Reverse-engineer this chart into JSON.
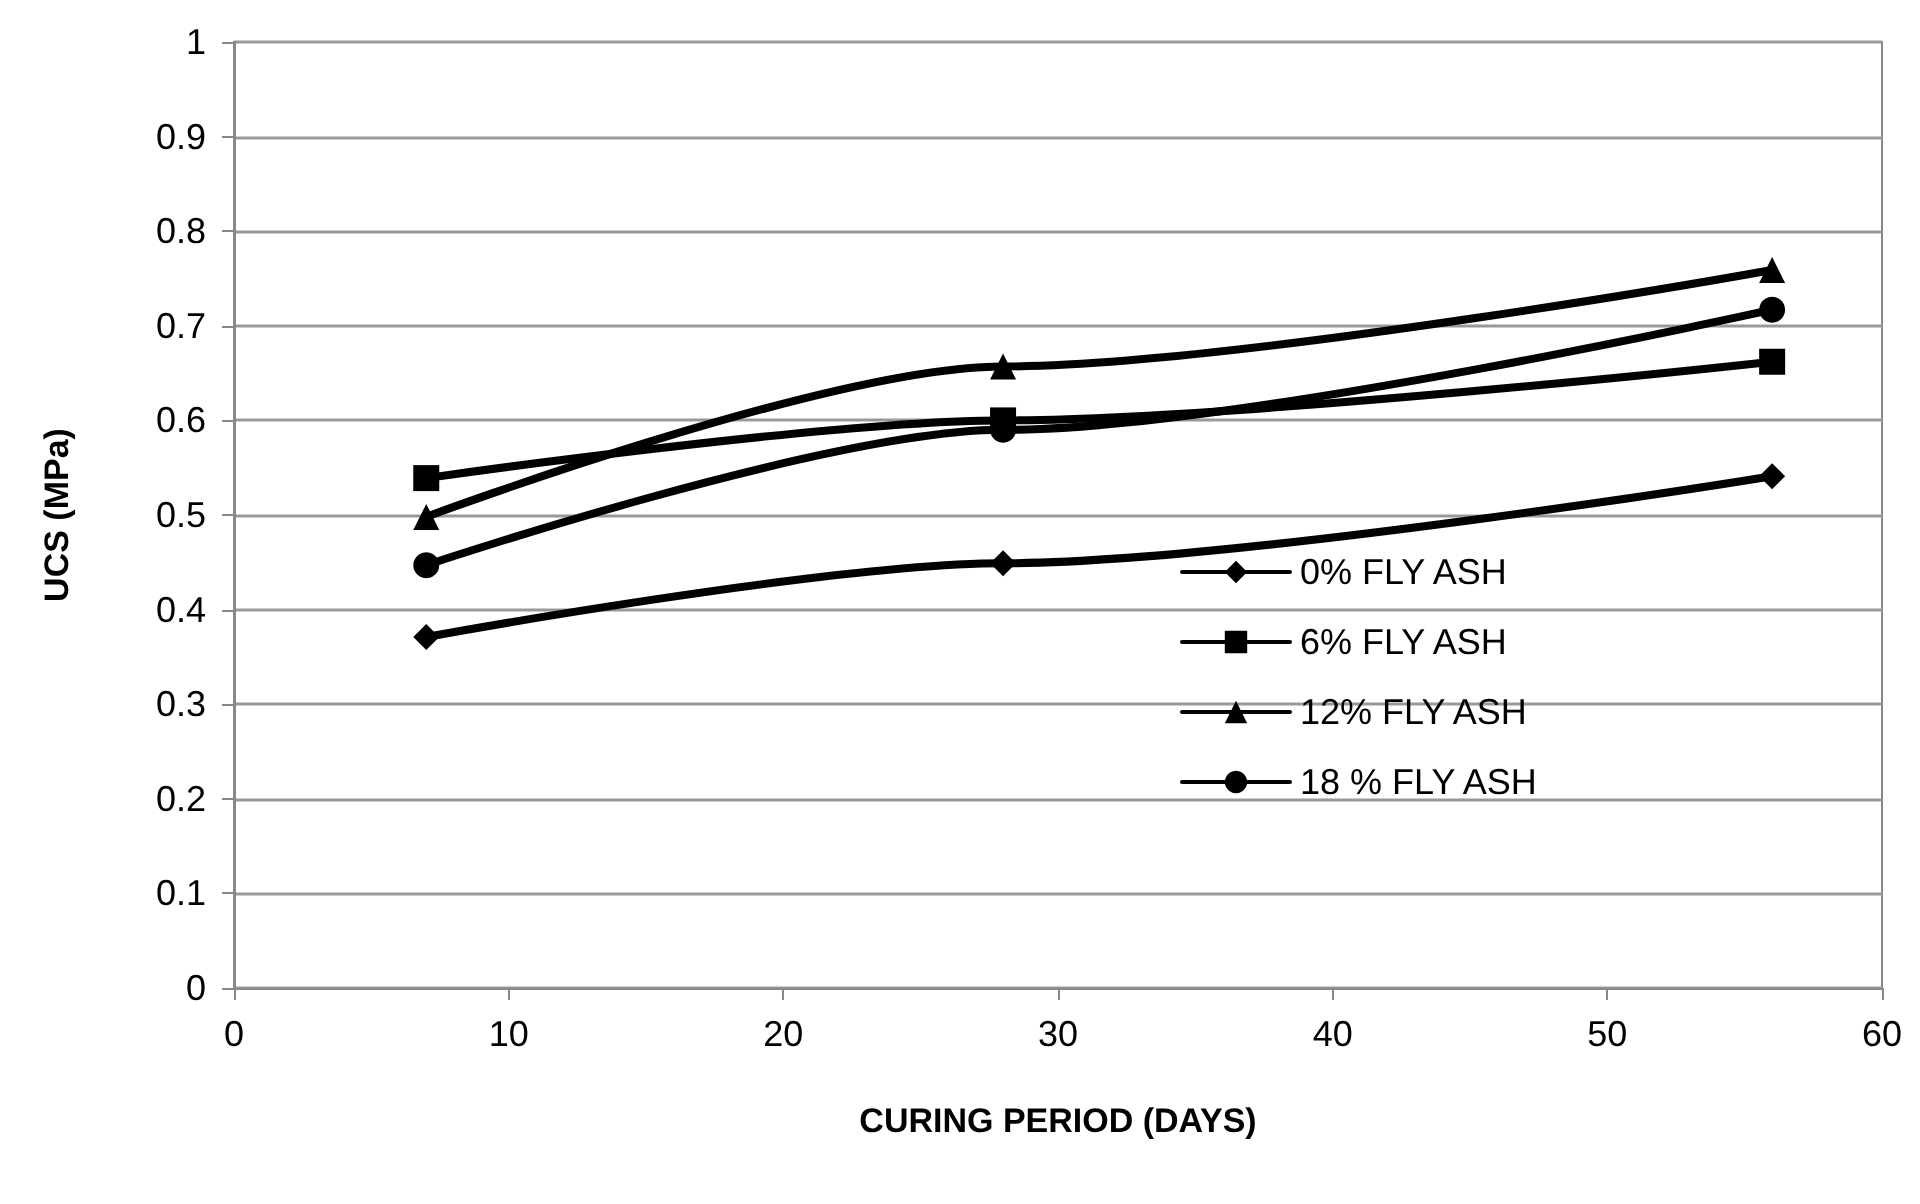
{
  "chart_data": {
    "type": "line",
    "xlabel": "CURING PERIOD (DAYS)",
    "ylabel": "UCS (MPa)",
    "x": [
      7,
      28,
      56
    ],
    "series": [
      {
        "name": "0% FLY ASH",
        "color": "#000000",
        "marker": "diamond",
        "values": [
          0.371,
          0.449,
          0.541
        ]
      },
      {
        "name": "6% FLY ASH",
        "color": "#000000",
        "marker": "square",
        "values": [
          0.539,
          0.6,
          0.662
        ]
      },
      {
        "name": "12% FLY ASH",
        "color": "#000000",
        "marker": "triangle",
        "values": [
          0.498,
          0.657,
          0.759
        ]
      },
      {
        "name": "18 % FLY ASH",
        "color": "#000000",
        "marker": "circle",
        "values": [
          0.447,
          0.59,
          0.717
        ]
      }
    ],
    "xlim": [
      0,
      60
    ],
    "xticks": [
      0,
      10,
      20,
      30,
      40,
      50,
      60
    ],
    "ylim": [
      0,
      1
    ],
    "yticks": [
      0,
      0.1,
      0.2,
      0.3,
      0.4,
      0.5,
      0.6,
      0.7,
      0.8,
      0.9,
      1
    ],
    "grid": "y",
    "legend": "bottom right",
    "line_style": "solid"
  }
}
